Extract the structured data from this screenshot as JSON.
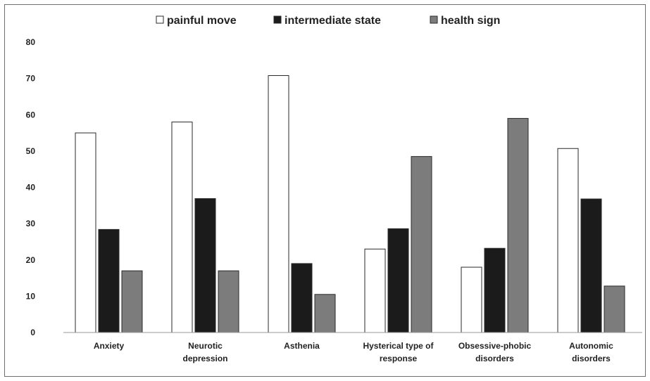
{
  "chart_data": {
    "type": "bar",
    "categories": [
      [
        "Anxiety"
      ],
      [
        "Neurotic",
        "depression"
      ],
      [
        "Asthenia"
      ],
      [
        "Hysterical type of",
        "response"
      ],
      [
        "Obsessive-phobic",
        "disorders"
      ],
      [
        "Autonomic",
        "disorders"
      ]
    ],
    "series": [
      {
        "name": "painful move",
        "values": [
          55,
          58,
          70.8,
          23,
          18,
          50.7
        ],
        "color": "#ffffff"
      },
      {
        "name": "intermediate state",
        "values": [
          28.4,
          36.9,
          19,
          28.6,
          23.2,
          36.8
        ],
        "color": "#1b1b1b"
      },
      {
        "name": "health sign",
        "values": [
          17,
          17,
          10.5,
          48.5,
          59,
          12.8
        ],
        "color": "#7c7c7c"
      }
    ],
    "yticks": [
      0,
      10,
      20,
      30,
      40,
      50,
      60,
      70,
      80
    ],
    "ylim": [
      0,
      80
    ],
    "grid": false,
    "legend_position": "top",
    "title": "",
    "xlabel": "",
    "ylabel": ""
  }
}
